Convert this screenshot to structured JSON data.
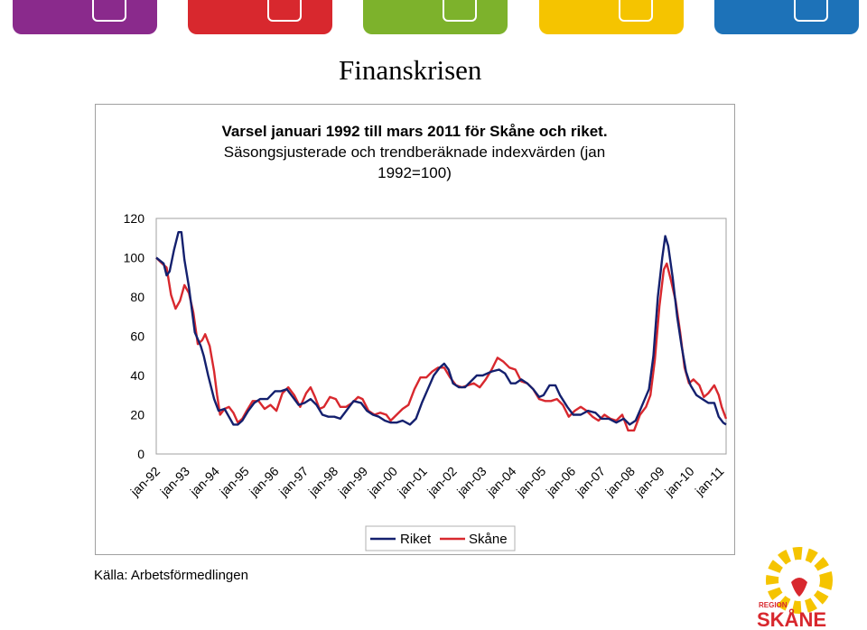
{
  "slide_title": "Finanskrisen",
  "source": "Källa: Arbetsförmedlingen",
  "logo": {
    "region_text": "REGION",
    "name_text": "SKÅNE"
  },
  "colors": {
    "riket": "#14206e",
    "skane": "#d8282e",
    "tabs": [
      "#8a2a8c",
      "#d8282e",
      "#7db22c",
      "#f5c400",
      "#1d72b8"
    ],
    "logo_rays": "#f5c400",
    "logo_text": "#d8282e"
  },
  "chart_data": {
    "type": "line",
    "title": "Varsel januari 1992 till mars 2011 för Skåne och riket. Säsongsjusterade och trendberäknade indexvärden (jan 1992=100)",
    "title_lines": [
      "Varsel januari 1992 till mars 2011 för Skåne och riket.",
      "Säsongsjusterade och trendberäknade indexvärden (jan",
      "1992=100)"
    ],
    "xlabel": "",
    "ylabel": "",
    "ylim": [
      0,
      120
    ],
    "yticks": [
      0,
      20,
      40,
      60,
      80,
      100,
      120
    ],
    "xlim": [
      1992.0,
      2011.2
    ],
    "xtick_labels": [
      "jan-92",
      "jan-93",
      "jan-94",
      "jan-95",
      "jan-96",
      "jan-97",
      "jan-98",
      "jan-99",
      "jan-00",
      "jan-01",
      "jan-02",
      "jan-03",
      "jan-04",
      "jan-05",
      "jan-06",
      "jan-07",
      "jan-08",
      "jan-09",
      "jan-10",
      "jan-11"
    ],
    "grid": false,
    "legend": "bottom",
    "series": [
      {
        "name": "Riket",
        "points": [
          [
            1992.0,
            100
          ],
          [
            1992.25,
            97
          ],
          [
            1992.35,
            91
          ],
          [
            1992.45,
            93
          ],
          [
            1992.6,
            104
          ],
          [
            1992.75,
            113
          ],
          [
            1992.85,
            113
          ],
          [
            1992.95,
            99
          ],
          [
            1993.1,
            85
          ],
          [
            1993.3,
            62
          ],
          [
            1993.5,
            55
          ],
          [
            1993.6,
            50
          ],
          [
            1993.75,
            40
          ],
          [
            1993.95,
            28
          ],
          [
            1994.1,
            22
          ],
          [
            1994.3,
            23
          ],
          [
            1994.45,
            19
          ],
          [
            1994.6,
            15
          ],
          [
            1994.75,
            15
          ],
          [
            1994.9,
            17
          ],
          [
            1995.1,
            22
          ],
          [
            1995.3,
            26
          ],
          [
            1995.5,
            28
          ],
          [
            1995.75,
            28
          ],
          [
            1996.0,
            32
          ],
          [
            1996.2,
            32
          ],
          [
            1996.4,
            33
          ],
          [
            1996.6,
            29
          ],
          [
            1996.8,
            25
          ],
          [
            1997.0,
            26
          ],
          [
            1997.2,
            28
          ],
          [
            1997.4,
            25
          ],
          [
            1997.6,
            20
          ],
          [
            1997.8,
            19
          ],
          [
            1998.0,
            19
          ],
          [
            1998.2,
            18
          ],
          [
            1998.45,
            23
          ],
          [
            1998.65,
            27
          ],
          [
            1998.9,
            26
          ],
          [
            1999.1,
            22
          ],
          [
            1999.3,
            20
          ],
          [
            1999.5,
            19
          ],
          [
            1999.7,
            17
          ],
          [
            1999.9,
            16
          ],
          [
            2000.1,
            16
          ],
          [
            2000.3,
            17
          ],
          [
            2000.55,
            15
          ],
          [
            2000.75,
            18
          ],
          [
            2000.95,
            26
          ],
          [
            2001.15,
            33
          ],
          [
            2001.35,
            40
          ],
          [
            2001.55,
            44
          ],
          [
            2001.7,
            46
          ],
          [
            2001.85,
            43
          ],
          [
            2002.0,
            36
          ],
          [
            2002.2,
            34
          ],
          [
            2002.4,
            34
          ],
          [
            2002.6,
            37
          ],
          [
            2002.8,
            40
          ],
          [
            2003.0,
            40
          ],
          [
            2003.3,
            42
          ],
          [
            2003.55,
            43
          ],
          [
            2003.75,
            41
          ],
          [
            2003.95,
            36
          ],
          [
            2004.1,
            36
          ],
          [
            2004.3,
            38
          ],
          [
            2004.5,
            36
          ],
          [
            2004.7,
            33
          ],
          [
            2004.9,
            29
          ],
          [
            2005.05,
            30
          ],
          [
            2005.25,
            35
          ],
          [
            2005.45,
            35
          ],
          [
            2005.6,
            30
          ],
          [
            2005.85,
            24
          ],
          [
            2006.05,
            20
          ],
          [
            2006.3,
            20
          ],
          [
            2006.55,
            22
          ],
          [
            2006.8,
            21
          ],
          [
            2007.0,
            18
          ],
          [
            2007.25,
            18
          ],
          [
            2007.5,
            16
          ],
          [
            2007.75,
            18
          ],
          [
            2007.95,
            15
          ],
          [
            2008.15,
            17
          ],
          [
            2008.35,
            24
          ],
          [
            2008.6,
            33
          ],
          [
            2008.75,
            50
          ],
          [
            2008.9,
            80
          ],
          [
            2009.05,
            100
          ],
          [
            2009.15,
            111
          ],
          [
            2009.25,
            106
          ],
          [
            2009.4,
            90
          ],
          [
            2009.55,
            70
          ],
          [
            2009.7,
            55
          ],
          [
            2009.85,
            42
          ],
          [
            2010.0,
            35
          ],
          [
            2010.2,
            30
          ],
          [
            2010.4,
            28
          ],
          [
            2010.6,
            26
          ],
          [
            2010.8,
            26
          ],
          [
            2010.95,
            19
          ],
          [
            2011.1,
            16
          ],
          [
            2011.2,
            15
          ]
        ]
      },
      {
        "name": "Skåne",
        "points": [
          [
            1992.0,
            100
          ],
          [
            1992.2,
            97
          ],
          [
            1992.35,
            95
          ],
          [
            1992.5,
            81
          ],
          [
            1992.65,
            74
          ],
          [
            1992.8,
            78
          ],
          [
            1992.95,
            86
          ],
          [
            1993.1,
            82
          ],
          [
            1993.25,
            72
          ],
          [
            1993.4,
            56
          ],
          [
            1993.55,
            58
          ],
          [
            1993.65,
            61
          ],
          [
            1993.8,
            55
          ],
          [
            1993.95,
            42
          ],
          [
            1994.05,
            30
          ],
          [
            1994.15,
            20
          ],
          [
            1994.3,
            23
          ],
          [
            1994.45,
            24
          ],
          [
            1994.6,
            21
          ],
          [
            1994.75,
            16
          ],
          [
            1994.9,
            18
          ],
          [
            1995.05,
            22
          ],
          [
            1995.25,
            27
          ],
          [
            1995.45,
            27
          ],
          [
            1995.65,
            23
          ],
          [
            1995.85,
            25
          ],
          [
            1996.05,
            22
          ],
          [
            1996.25,
            31
          ],
          [
            1996.45,
            34
          ],
          [
            1996.65,
            30
          ],
          [
            1996.85,
            24
          ],
          [
            1997.05,
            31
          ],
          [
            1997.2,
            34
          ],
          [
            1997.35,
            29
          ],
          [
            1997.5,
            23
          ],
          [
            1997.65,
            24
          ],
          [
            1997.85,
            29
          ],
          [
            1998.05,
            28
          ],
          [
            1998.2,
            24
          ],
          [
            1998.4,
            24
          ],
          [
            1998.6,
            26
          ],
          [
            1998.8,
            29
          ],
          [
            1998.95,
            28
          ],
          [
            1999.15,
            22
          ],
          [
            1999.35,
            20
          ],
          [
            1999.55,
            21
          ],
          [
            1999.75,
            20
          ],
          [
            1999.9,
            17
          ],
          [
            2000.1,
            20
          ],
          [
            2000.3,
            23
          ],
          [
            2000.5,
            25
          ],
          [
            2000.7,
            33
          ],
          [
            2000.9,
            39
          ],
          [
            2001.1,
            39
          ],
          [
            2001.3,
            42
          ],
          [
            2001.5,
            44
          ],
          [
            2001.7,
            44
          ],
          [
            2001.9,
            39
          ],
          [
            2002.1,
            35
          ],
          [
            2002.3,
            34
          ],
          [
            2002.5,
            35
          ],
          [
            2002.7,
            36
          ],
          [
            2002.9,
            34
          ],
          [
            2003.1,
            38
          ],
          [
            2003.3,
            43
          ],
          [
            2003.5,
            49
          ],
          [
            2003.7,
            47
          ],
          [
            2003.9,
            44
          ],
          [
            2004.1,
            43
          ],
          [
            2004.3,
            37
          ],
          [
            2004.5,
            36
          ],
          [
            2004.7,
            33
          ],
          [
            2004.9,
            28
          ],
          [
            2005.1,
            27
          ],
          [
            2005.3,
            27
          ],
          [
            2005.5,
            28
          ],
          [
            2005.7,
            25
          ],
          [
            2005.9,
            19
          ],
          [
            2006.1,
            22
          ],
          [
            2006.3,
            24
          ],
          [
            2006.5,
            22
          ],
          [
            2006.7,
            19
          ],
          [
            2006.9,
            17
          ],
          [
            2007.1,
            20
          ],
          [
            2007.3,
            18
          ],
          [
            2007.5,
            17
          ],
          [
            2007.7,
            20
          ],
          [
            2007.9,
            12
          ],
          [
            2008.1,
            12
          ],
          [
            2008.3,
            20
          ],
          [
            2008.5,
            24
          ],
          [
            2008.65,
            30
          ],
          [
            2008.8,
            48
          ],
          [
            2008.95,
            75
          ],
          [
            2009.1,
            94
          ],
          [
            2009.2,
            97
          ],
          [
            2009.35,
            88
          ],
          [
            2009.5,
            78
          ],
          [
            2009.65,
            62
          ],
          [
            2009.8,
            44
          ],
          [
            2009.95,
            36
          ],
          [
            2010.1,
            38
          ],
          [
            2010.3,
            35
          ],
          [
            2010.45,
            29
          ],
          [
            2010.6,
            31
          ],
          [
            2010.8,
            35
          ],
          [
            2010.95,
            30
          ],
          [
            2011.05,
            24
          ],
          [
            2011.2,
            18
          ]
        ]
      }
    ]
  }
}
